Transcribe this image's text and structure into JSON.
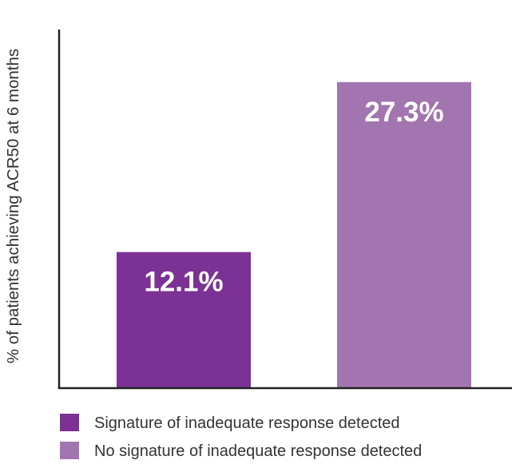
{
  "chart_data": {
    "type": "bar",
    "title": "",
    "xlabel": "",
    "ylabel": "% of patients achieving ACR50 at 6 months",
    "ylim": [
      0,
      32
    ],
    "grid": false,
    "legend_position": "bottom",
    "categories": [
      "Signature of inadequate response detected",
      "No signature of inadequate response detected"
    ],
    "values": [
      12.1,
      27.3
    ],
    "value_labels": [
      "12.1%",
      "27.3%"
    ],
    "colors": [
      "#7B3294",
      "#A275B0"
    ]
  }
}
